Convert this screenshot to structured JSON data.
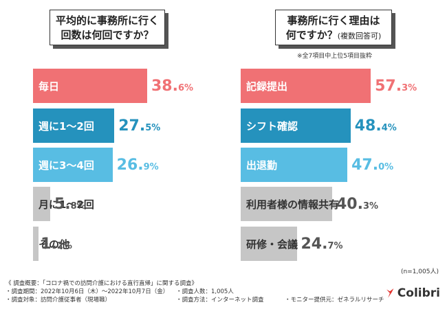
{
  "questions": {
    "left_line1": "平均的に事務所に行く",
    "left_line2": "回数は何回ですか？",
    "right_line1": "事務所に行く理由は",
    "right_line2": "何ですか？",
    "right_suffix": "(複数回答可)"
  },
  "note_right": "※全7項目中上位5項目抜粋",
  "chart_data": [
    {
      "type": "bar",
      "orientation": "horizontal",
      "title": "平均的に事務所に行く回数は何回ですか？",
      "categories": [
        "毎日",
        "週に1〜2回",
        "週に3〜4回",
        "月に1〜2回",
        "その他"
      ],
      "values": [
        38.6,
        27.5,
        26.9,
        5.8,
        1.2
      ],
      "value_labels": [
        {
          "int": "38.",
          "dec": "6%"
        },
        {
          "int": "27.",
          "dec": "5%"
        },
        {
          "int": "26.",
          "dec": "9%"
        },
        {
          "int": "5.",
          "dec": "8%"
        },
        {
          "int": "1.",
          "dec": "2%"
        }
      ],
      "colors": [
        "#f07174",
        "#2592bd",
        "#58bde3",
        "#c6c6c6",
        "#c6c6c6"
      ],
      "label_color": [
        "#ffffff",
        "#ffffff",
        "#ffffff",
        "#333333",
        "#333333"
      ]
    },
    {
      "type": "bar",
      "orientation": "horizontal",
      "title": "事務所に行く理由は何ですか？(複数回答可)",
      "categories": [
        "記録提出",
        "シフト確認",
        "出退勤",
        "利用者様の情報共有",
        "研修・会議"
      ],
      "values": [
        57.3,
        48.4,
        47.0,
        40.3,
        24.7
      ],
      "value_labels": [
        {
          "int": "57.",
          "dec": "3%"
        },
        {
          "int": "48.",
          "dec": "4%"
        },
        {
          "int": "47.",
          "dec": "0%"
        },
        {
          "int": "40.",
          "dec": "3%"
        },
        {
          "int": "24.",
          "dec": "7%"
        }
      ],
      "colors": [
        "#f07174",
        "#2592bd",
        "#58bde3",
        "#c6c6c6",
        "#c6c6c6"
      ],
      "label_color": [
        "#ffffff",
        "#ffffff",
        "#ffffff",
        "#333333",
        "#333333"
      ]
    }
  ],
  "value_colors": [
    "#f07174",
    "#2592bd",
    "#58bde3",
    "#555555",
    "#555555"
  ],
  "n_label": "(n=1,005人)",
  "footer": {
    "overview": "《 調査概要：「コロナ禍での訪問介護における直行直帰」に関する調査》",
    "period": "・調査期間：2022年10月6日（木）〜2022年10月7日（金）",
    "people": "・調査人数：1,005人",
    "target": "・調査対象：訪問介護従事者（現場職）",
    "method": "・調査方法：インターネット調査",
    "monitor": "・モニター提供元：ゼネラルリサーチ"
  },
  "logo": {
    "text": "Colibri",
    "color": "#e3342f"
  }
}
